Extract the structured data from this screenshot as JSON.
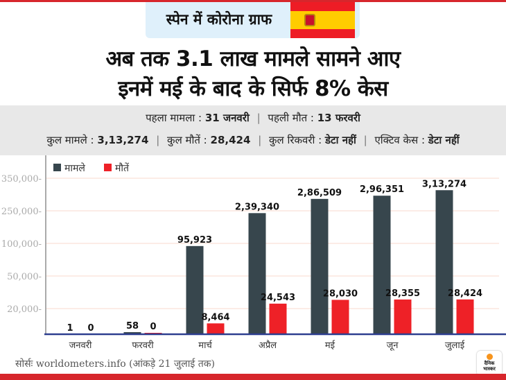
{
  "badge": {
    "title": "स्पेन में कोरोना ग्राफ",
    "flag": "spain-flag"
  },
  "headline": {
    "line1": "अब तक 3.1 लाख मामले सामने आए",
    "line2": "इनमें मई के बाद के सिर्फ 8% केस"
  },
  "info": {
    "first_case_label": "पहला मामला :",
    "first_case_value": "31 जनवरी",
    "first_death_label": "पहली मौत :",
    "first_death_value": "13 फरवरी",
    "total_cases_label": "कुल मामले :",
    "total_cases_value": "3,13,274",
    "total_deaths_label": "कुल मौतें :",
    "total_deaths_value": "28,424",
    "total_recovered_label": "कुल रिकवरी :",
    "total_recovered_value": "डेटा नहीं",
    "active_label": "एक्टिव केस :",
    "active_value": "डेटा नहीं",
    "separator": "|"
  },
  "colors": {
    "cases": "#37464d",
    "deaths": "#ee2127",
    "grid": "#f9d8cc",
    "baseline": "#2d3e8f",
    "accent": "#d7262c"
  },
  "chart_data": {
    "type": "bar",
    "title": "",
    "xlabel": "",
    "ylabel": "",
    "categories": [
      "जनवरी",
      "फरवरी",
      "मार्च",
      "अप्रैल",
      "मई",
      "जून",
      "जुलाई"
    ],
    "series": [
      {
        "name": "मामले",
        "values": [
          1,
          58,
          95923,
          239340,
          286509,
          296351,
          313274
        ],
        "labels": [
          "1",
          "58",
          "95,923",
          "2,39,340",
          "2,86,509",
          "2,96,351",
          "3,13,274"
        ]
      },
      {
        "name": "मौतें",
        "values": [
          0,
          0,
          8464,
          24543,
          28030,
          28355,
          28424
        ],
        "labels": [
          "0",
          "0",
          "8,464",
          "24,543",
          "28,030",
          "28,355",
          "28,424"
        ]
      }
    ],
    "yticks": [
      20000,
      50000,
      100000,
      250000,
      350000
    ],
    "ytick_labels": [
      "20,000",
      "50,000",
      "100,000",
      "250,000",
      "350,000"
    ],
    "ylim": [
      0,
      350000
    ],
    "grid": true,
    "legend": "top-left",
    "scale_note": "non-linear (evenly spaced gridlines)"
  },
  "source": "सोर्सः worldometers.info  (आंकड़े 21 जुलाई तक)",
  "logo": {
    "line1": "दैनिक",
    "line2": "भास्कर"
  }
}
